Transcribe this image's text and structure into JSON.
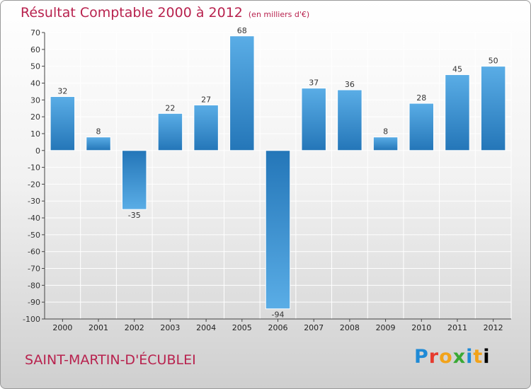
{
  "header": {
    "title": "Résultat Comptable 2000 à 2012",
    "subtitle": "(en milliers d'€)"
  },
  "footer": {
    "commune": "SAINT-MARTIN-D'ÉCUBLEI",
    "logo": "Proxiti"
  },
  "colors": {
    "title": "#b8224e",
    "bar_light": "#5aade6",
    "bar_dark": "#2476b8",
    "grid": "#ffffff"
  },
  "chart_data": {
    "type": "bar",
    "title": "Résultat Comptable 2000 à 2012",
    "subtitle": "(en milliers d'€)",
    "categories": [
      "2000",
      "2001",
      "2002",
      "2003",
      "2004",
      "2005",
      "2006",
      "2007",
      "2008",
      "2009",
      "2010",
      "2011",
      "2012"
    ],
    "values": [
      32,
      8,
      -35,
      22,
      27,
      68,
      -94,
      37,
      36,
      8,
      28,
      45,
      50
    ],
    "ylim": [
      -100,
      70
    ],
    "yticks": [
      70,
      60,
      50,
      40,
      30,
      20,
      10,
      0,
      -10,
      -20,
      -30,
      -40,
      -50,
      -60,
      -70,
      -80,
      -90,
      -100
    ],
    "grid": true,
    "legend": "none"
  }
}
